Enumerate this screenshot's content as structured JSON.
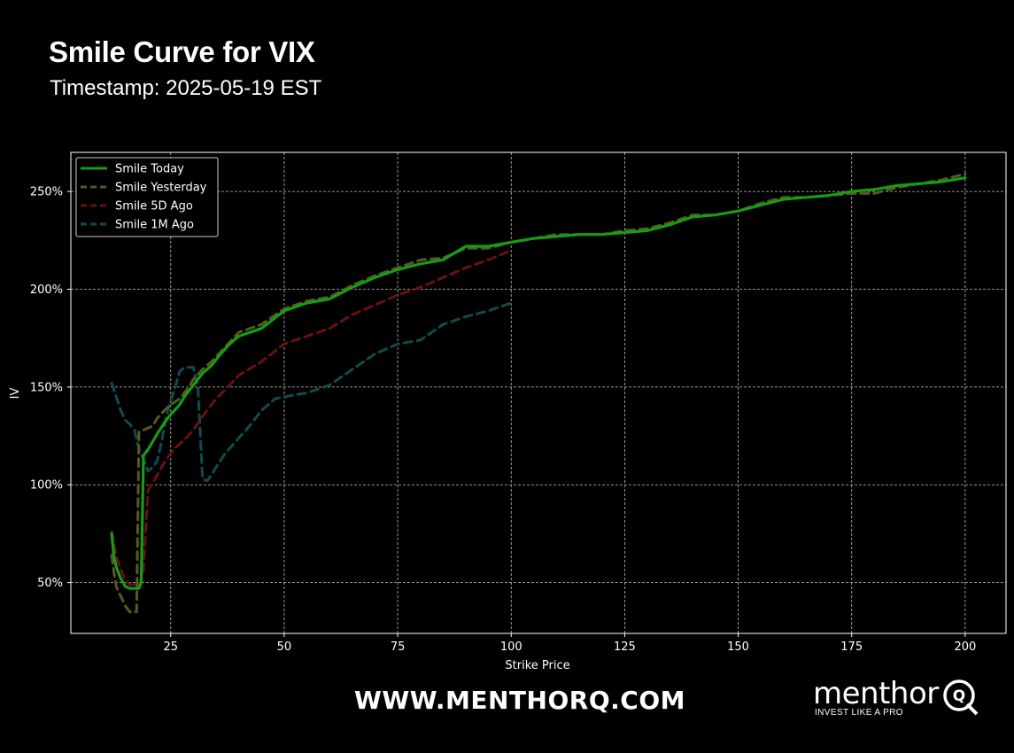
{
  "header": {
    "title": "Smile Curve for VIX",
    "subtitle": "Timestamp: 2025-05-19 EST"
  },
  "footer": {
    "url": "WWW.MENTHORQ.COM",
    "logo_word": "menthor",
    "logo_tagline": "INVEST LIKE A PRO",
    "logo_mark": "Q"
  },
  "chart_data": {
    "type": "line",
    "xlabel": "Strike Price",
    "ylabel": "IV",
    "xlim": [
      3,
      209
    ],
    "ylim": [
      0.24,
      2.7
    ],
    "xticks": [
      25,
      50,
      75,
      100,
      125,
      150,
      175,
      200
    ],
    "yticks": [
      0.5,
      1.0,
      1.5,
      2.0,
      2.5
    ],
    "ytick_labels": [
      "50%",
      "100%",
      "150%",
      "200%",
      "250%"
    ],
    "grid": true,
    "legend_position": "top-left",
    "colors": {
      "background": "#000000",
      "grid": "#bfbfbf",
      "axis": "#ffffff",
      "today": "#169c16",
      "yesterday": "#58591e",
      "five_day": "#6b1010",
      "one_month": "#0f4d4d"
    },
    "series": [
      {
        "name": "Smile Today",
        "style": "solid",
        "color": "#169c16",
        "x": [
          12,
          12.5,
          13,
          14,
          15,
          16,
          17,
          18,
          18.5,
          19,
          20,
          21,
          22,
          24,
          25,
          27,
          28,
          29,
          30,
          32,
          34,
          36,
          38,
          40,
          45,
          50,
          55,
          60,
          65,
          70,
          75,
          80,
          85,
          90,
          95,
          100,
          105,
          110,
          115,
          120,
          125,
          130,
          135,
          140,
          145,
          150,
          155,
          160,
          165,
          170,
          175,
          180,
          185,
          190,
          195,
          200
        ],
        "y": [
          0.75,
          0.63,
          0.58,
          0.52,
          0.48,
          0.47,
          0.47,
          0.47,
          0.5,
          1.15,
          1.18,
          1.22,
          1.26,
          1.33,
          1.36,
          1.41,
          1.45,
          1.48,
          1.51,
          1.57,
          1.61,
          1.67,
          1.72,
          1.76,
          1.8,
          1.89,
          1.93,
          1.95,
          2.01,
          2.06,
          2.1,
          2.13,
          2.15,
          2.22,
          2.22,
          2.24,
          2.26,
          2.27,
          2.28,
          2.28,
          2.29,
          2.3,
          2.33,
          2.37,
          2.38,
          2.4,
          2.43,
          2.46,
          2.47,
          2.48,
          2.5,
          2.51,
          2.53,
          2.54,
          2.55,
          2.57
        ]
      },
      {
        "name": "Smile Yesterday",
        "style": "dashed",
        "color": "#58591e",
        "x": [
          12,
          12.5,
          13,
          14,
          15,
          16,
          17,
          17.5,
          18,
          19,
          20,
          21,
          22,
          24,
          25,
          27,
          28,
          29,
          30,
          32,
          34,
          36,
          38,
          40,
          45,
          50,
          55,
          60,
          65,
          70,
          75,
          80,
          85,
          90,
          95,
          100,
          105,
          110,
          115,
          120,
          125,
          130,
          135,
          140,
          145,
          150,
          155,
          160,
          165,
          170,
          175,
          180,
          185,
          190,
          195,
          200
        ],
        "y": [
          0.64,
          0.55,
          0.48,
          0.43,
          0.38,
          0.35,
          0.35,
          0.35,
          1.27,
          1.28,
          1.29,
          1.3,
          1.34,
          1.39,
          1.41,
          1.44,
          1.47,
          1.5,
          1.54,
          1.59,
          1.63,
          1.68,
          1.73,
          1.78,
          1.82,
          1.9,
          1.94,
          1.96,
          2.02,
          2.07,
          2.11,
          2.15,
          2.16,
          2.21,
          2.21,
          2.24,
          2.26,
          2.28,
          2.28,
          2.28,
          2.3,
          2.31,
          2.34,
          2.38,
          2.38,
          2.4,
          2.44,
          2.47,
          2.47,
          2.48,
          2.49,
          2.49,
          2.52,
          2.54,
          2.56,
          2.59
        ]
      },
      {
        "name": "Smile 5D Ago",
        "style": "dashed",
        "color": "#6b1010",
        "x": [
          12,
          12.5,
          13,
          14,
          15,
          16,
          17,
          18,
          19,
          20,
          22,
          24,
          26,
          28,
          30,
          32,
          35,
          38,
          40,
          45,
          50,
          55,
          60,
          65,
          70,
          75,
          80,
          85,
          90,
          95,
          100
        ],
        "y": [
          0.76,
          0.7,
          0.63,
          0.57,
          0.51,
          0.49,
          0.49,
          0.49,
          0.56,
          0.97,
          1.05,
          1.13,
          1.19,
          1.23,
          1.28,
          1.35,
          1.44,
          1.51,
          1.56,
          1.63,
          1.72,
          1.76,
          1.8,
          1.87,
          1.92,
          1.97,
          2.01,
          2.06,
          2.11,
          2.15,
          2.2
        ]
      },
      {
        "name": "Smile 1M Ago",
        "style": "dashed",
        "color": "#0f4d4d",
        "x": [
          12,
          13,
          14,
          15,
          16,
          17,
          18,
          19,
          20,
          21,
          22,
          23,
          24,
          25,
          26,
          27,
          28,
          29,
          30,
          31,
          32,
          33,
          34,
          35,
          37,
          40,
          42,
          45,
          48,
          50,
          55,
          60,
          65,
          70,
          75,
          80,
          85,
          90,
          95,
          100
        ],
        "y": [
          1.52,
          1.45,
          1.38,
          1.33,
          1.31,
          1.28,
          1.18,
          1.13,
          1.07,
          1.09,
          1.12,
          1.22,
          1.35,
          1.43,
          1.5,
          1.58,
          1.6,
          1.6,
          1.6,
          1.5,
          1.03,
          1.02,
          1.05,
          1.09,
          1.16,
          1.24,
          1.29,
          1.38,
          1.44,
          1.45,
          1.47,
          1.51,
          1.59,
          1.67,
          1.72,
          1.74,
          1.82,
          1.86,
          1.89,
          1.93
        ]
      }
    ]
  }
}
